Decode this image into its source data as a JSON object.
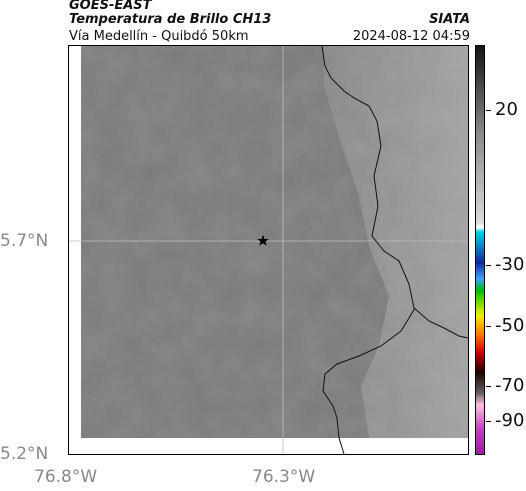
{
  "header": {
    "satellite": "GOES-EAST",
    "product": "Temperatura de Brillo CH13",
    "route": "Vía Medellín - Quibdó 50km",
    "brand": "SIATA",
    "timestamp": "2024-08-12 04:59"
  },
  "axes": {
    "lat_ticks": [
      "5.7°N",
      "5.2°N"
    ],
    "lon_ticks": [
      "76.8°W",
      "76.3°W"
    ]
  },
  "colorbar": {
    "labels": [
      "20",
      "-30",
      "-50",
      "-70",
      "-90"
    ],
    "colors": {
      "top": "#141414",
      "grey_mid": "#8c8c8c",
      "grey_light": "#d8d8d8",
      "cyan": "#00d8e8",
      "blue": "#1028a0",
      "green": "#00c000",
      "yellow": "#f0f000",
      "orange": "#ff7000",
      "red": "#d00000",
      "dark": "#200000",
      "pink": "#ffc0e0",
      "magenta": "#c040c0"
    }
  },
  "map": {
    "marker": "star-icon",
    "background_grey": "#7c7c7c",
    "east_grey": "#9a9a9a"
  }
}
